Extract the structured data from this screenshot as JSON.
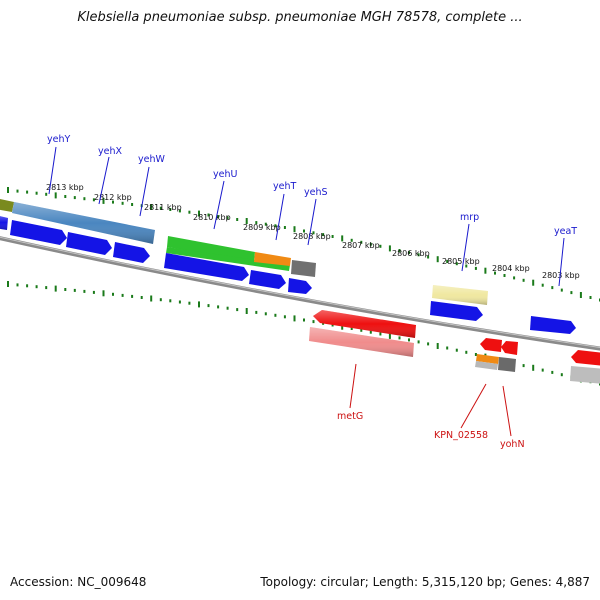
{
  "title": "Klebsiella pneumoniae subsp. pneumoniae MGH 78578, complete ...",
  "footer": {
    "accession": "Accession: NC_009648",
    "summary": "Topology: circular; Length: 5,315,120 bp; Genes: 4,887"
  },
  "colors": {
    "forward_gene": "#1010e0",
    "reverse_gene": "#e01010",
    "backbone": "#777777",
    "tick": "#1a7a1a",
    "forward_label": "#1a1acd",
    "reverse_label": "#cc1111"
  },
  "scale_labels": [
    "2813 kbp",
    "2812 kbp",
    "2811 kbp",
    "2810 kbp",
    "2809 kbp",
    "2808 kbp",
    "2807 kbp",
    "2806 kbp",
    "2805 kbp",
    "2804 kbp",
    "2803 kbp"
  ],
  "forward_gene_labels": [
    "yehY",
    "yehX",
    "yehW",
    "yehU",
    "yehT",
    "yehS",
    "mrp",
    "yeaT"
  ],
  "reverse_gene_labels": [
    "metG",
    "KPN_02558",
    "yohN"
  ]
}
